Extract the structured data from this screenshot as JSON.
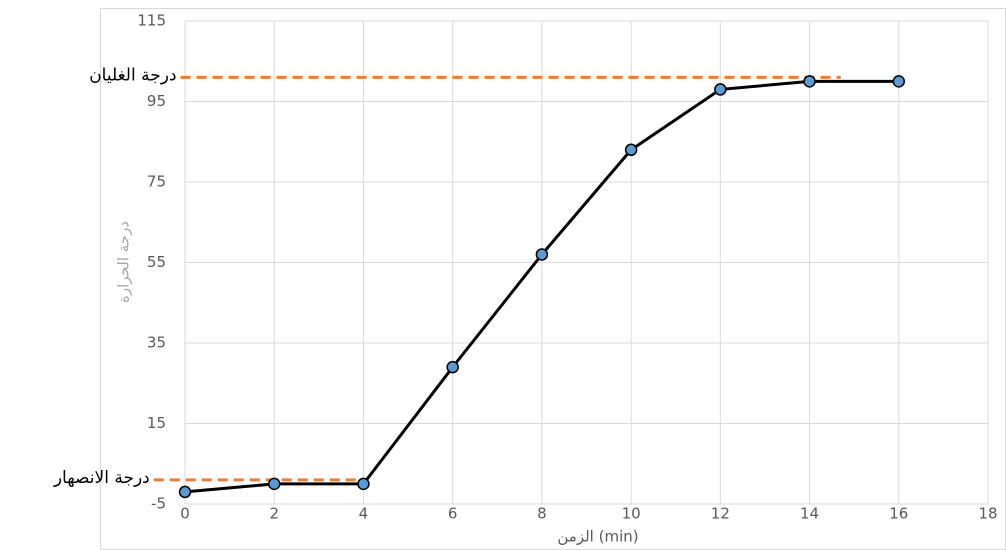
{
  "chart_data": {
    "type": "line",
    "x_label": "الزمن (min)",
    "y_label": "درجة الحرارة",
    "x": [
      0,
      2,
      4,
      6,
      8,
      10,
      12,
      14,
      16
    ],
    "series": [
      {
        "color": "#000000",
        "marker_color": "#5b9bd5",
        "values": [
          -2,
          0,
          0,
          29,
          57,
          83,
          98,
          100,
          100
        ]
      }
    ],
    "xlim": [
      0,
      18
    ],
    "xticks": [
      0,
      2,
      4,
      6,
      8,
      10,
      12,
      14,
      16,
      18
    ],
    "ylim": [
      -5,
      115
    ],
    "yticks": [
      -5,
      15,
      35,
      55,
      75,
      95,
      115
    ],
    "grid": true,
    "reference_lines": [
      {
        "label": "درجة الغليان",
        "value": 101,
        "x_start": -0.1,
        "x_end": 14.7,
        "color": "#ed7d31"
      },
      {
        "label": "درجة الانصهار",
        "value": 1,
        "x_start": -0.7,
        "x_end": 4.1,
        "color": "#ed7d31"
      }
    ]
  }
}
